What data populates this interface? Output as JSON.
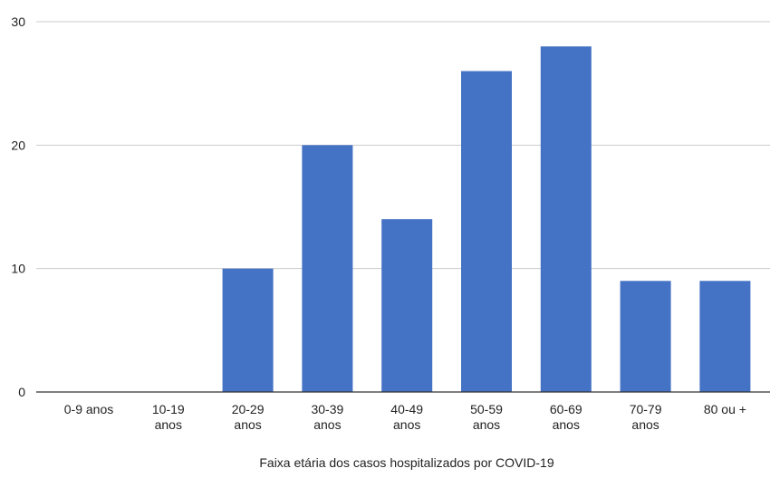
{
  "chart_data": {
    "type": "bar",
    "title": "",
    "xlabel": "Faixa etária dos casos hospitalizados por COVID-19",
    "ylabel": "",
    "categories": [
      "0-9 anos",
      "10-19 anos",
      "20-29 anos",
      "30-39 anos",
      "40-49 anos",
      "50-59 anos",
      "60-69 anos",
      "70-79 anos",
      "80 ou +"
    ],
    "category_lines": [
      [
        "0-9 anos"
      ],
      [
        "10-19",
        "anos"
      ],
      [
        "20-29",
        "anos"
      ],
      [
        "30-39",
        "anos"
      ],
      [
        "40-49",
        "anos"
      ],
      [
        "50-59",
        "anos"
      ],
      [
        "60-69",
        "anos"
      ],
      [
        "70-79",
        "anos"
      ],
      [
        "80 ou +"
      ]
    ],
    "values": [
      0,
      0,
      10,
      20,
      14,
      26,
      28,
      9,
      9
    ],
    "ylim": [
      0,
      30
    ],
    "yticks": [
      0,
      10,
      20,
      30
    ],
    "grid": true,
    "legend": "none",
    "bar_color": "#4472c4",
    "grid_color": "#cccccc",
    "axis_color": "#333333"
  }
}
